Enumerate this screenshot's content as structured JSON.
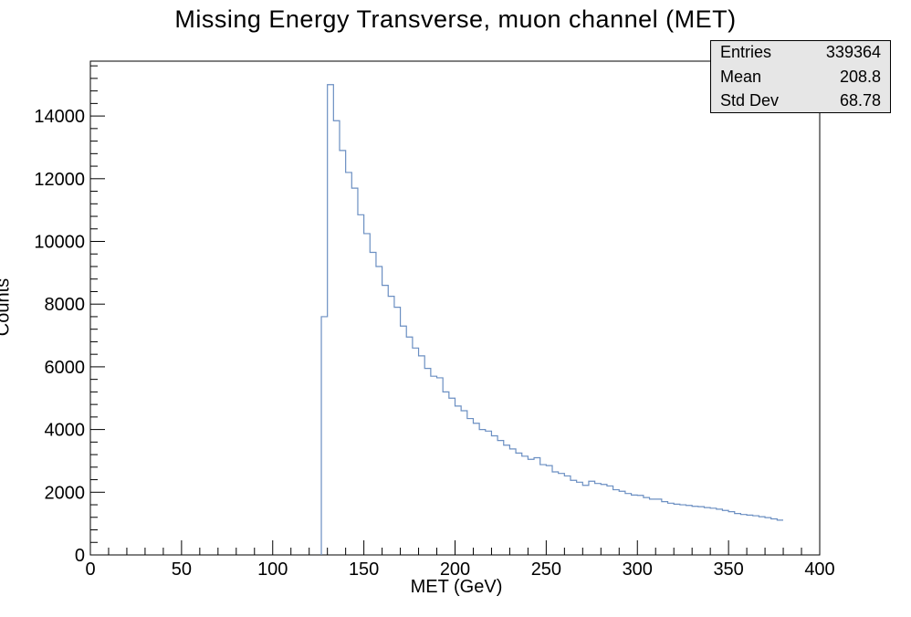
{
  "chart_data": {
    "type": "histogram",
    "title": "Missing Energy Transverse, muon channel (MET)",
    "xlabel": "MET (GeV)",
    "ylabel": "Counts",
    "xlim": [
      0,
      400
    ],
    "ylim": [
      0,
      15750
    ],
    "bin_width": 3.333,
    "x_ticks": [
      0,
      50,
      100,
      150,
      200,
      250,
      300,
      350,
      400
    ],
    "y_ticks": [
      0,
      2000,
      4000,
      6000,
      8000,
      10000,
      12000,
      14000
    ],
    "line_color": "#6b8fc2",
    "stats": {
      "entries_label": "Entries",
      "entries": "339364",
      "mean_label": "Mean",
      "mean": "208.8",
      "stddev_label": "Std Dev",
      "stddev": "68.78"
    },
    "bin_edges_start": 126.67,
    "counts": [
      7600,
      15000,
      13850,
      12900,
      12200,
      11700,
      10850,
      10250,
      9650,
      9200,
      8600,
      8250,
      7900,
      7300,
      6950,
      6600,
      6350,
      5950,
      5700,
      5650,
      5200,
      5000,
      4750,
      4600,
      4350,
      4200,
      4000,
      3950,
      3800,
      3650,
      3500,
      3380,
      3250,
      3150,
      3050,
      3100,
      2880,
      2850,
      2650,
      2600,
      2520,
      2380,
      2320,
      2220,
      2350,
      2280,
      2250,
      2200,
      2080,
      2030,
      1960,
      1910,
      1900,
      1830,
      1780,
      1780,
      1700,
      1650,
      1620,
      1600,
      1580,
      1550,
      1540,
      1510,
      1490,
      1460,
      1420,
      1380,
      1320,
      1290,
      1270,
      1250,
      1220,
      1190,
      1150,
      1110
    ]
  }
}
